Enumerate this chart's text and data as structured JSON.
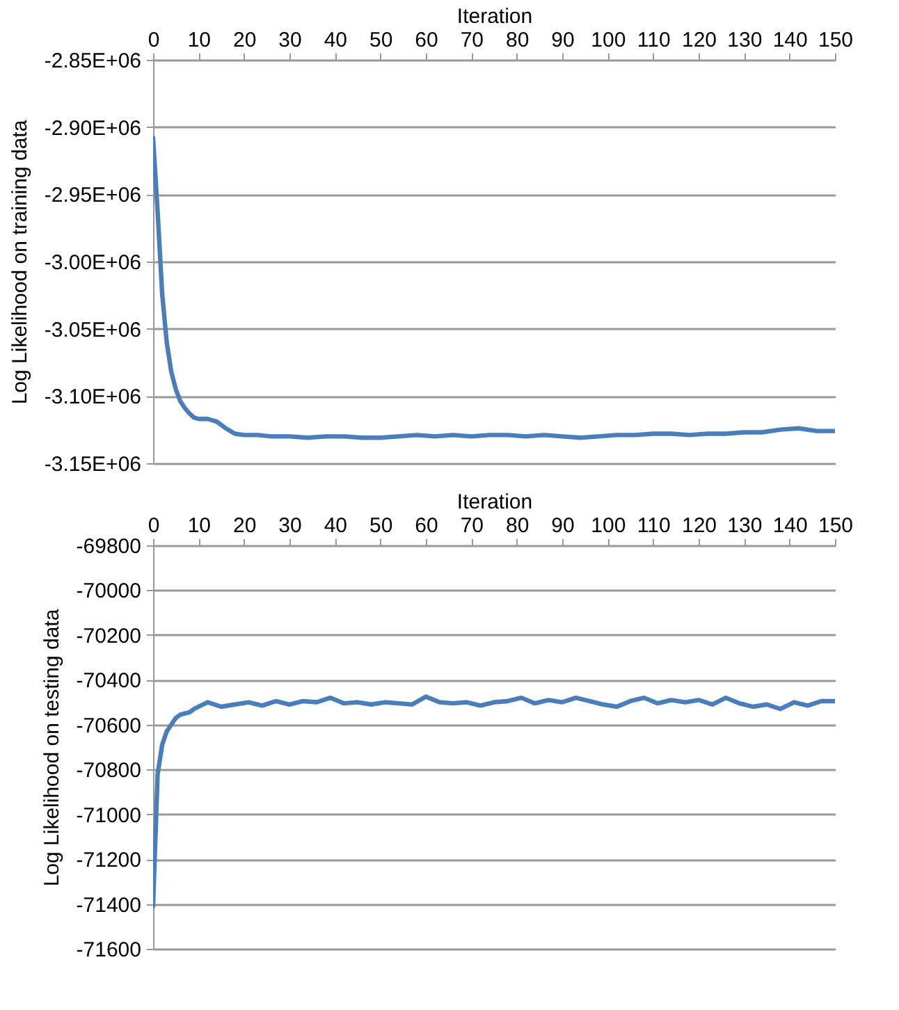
{
  "chart_data": [
    {
      "type": "line",
      "xlabel": "Iteration",
      "ylabel": "Log Likelihood on training data",
      "xlim": [
        0,
        150
      ],
      "xticks": [
        0,
        10,
        20,
        30,
        40,
        50,
        60,
        70,
        80,
        90,
        100,
        110,
        120,
        130,
        140,
        150
      ],
      "ylim": [
        -3150000,
        -2850000
      ],
      "yticks": [
        {
          "value": -3150000,
          "label": "-3.15E+06"
        },
        {
          "value": -3100000,
          "label": "-3.10E+06"
        },
        {
          "value": -3050000,
          "label": "-3.05E+06"
        },
        {
          "value": -3000000,
          "label": "-3.00E+06"
        },
        {
          "value": -2950000,
          "label": "-2.95E+06"
        },
        {
          "value": -2900000,
          "label": "-2.90E+06"
        },
        {
          "value": -2850000,
          "label": "-2.85E+06"
        }
      ],
      "grid": "y",
      "legend": false,
      "marker": "none",
      "line_style": "solid",
      "x": [
        0,
        1,
        2,
        3,
        4,
        5,
        6,
        7,
        8,
        9,
        10,
        12,
        14,
        16,
        18,
        20,
        23,
        26,
        30,
        34,
        38,
        42,
        46,
        50,
        54,
        58,
        62,
        66,
        70,
        74,
        78,
        82,
        86,
        90,
        94,
        98,
        102,
        106,
        110,
        114,
        118,
        122,
        126,
        130,
        134,
        138,
        142,
        146,
        150
      ],
      "series": [
        {
          "color": "#4a7ebb",
          "values": [
            -2908000,
            -2963000,
            -3024000,
            -3060000,
            -3082000,
            -3095000,
            -3104000,
            -3109000,
            -3113000,
            -3116000,
            -3117000,
            -3117000,
            -3119000,
            -3124000,
            -3128000,
            -3129000,
            -3129000,
            -3130000,
            -3130000,
            -3131000,
            -3130000,
            -3130000,
            -3131000,
            -3131000,
            -3130000,
            -3129000,
            -3130000,
            -3129000,
            -3130000,
            -3129000,
            -3129000,
            -3130000,
            -3129000,
            -3130000,
            -3131000,
            -3130000,
            -3129000,
            -3129000,
            -3128000,
            -3128000,
            -3129000,
            -3128000,
            -3128000,
            -3127000,
            -3127000,
            -3125000,
            -3124000,
            -3126000,
            -3126000
          ]
        }
      ]
    },
    {
      "type": "line",
      "xlabel": "Iteration",
      "ylabel": "Log Likelihood on testing data",
      "xlim": [
        0,
        150
      ],
      "xticks": [
        0,
        10,
        20,
        30,
        40,
        50,
        60,
        70,
        80,
        90,
        100,
        110,
        120,
        130,
        140,
        150
      ],
      "ylim": [
        -71600,
        -69800
      ],
      "yticks": [
        -71600,
        -71400,
        -71200,
        -71000,
        -70800,
        -70600,
        -70400,
        -70200,
        -70000,
        -69800
      ],
      "grid": "y",
      "legend": false,
      "marker": "none",
      "line_style": "solid",
      "x": [
        0,
        1,
        2,
        3,
        4,
        5,
        6,
        7,
        8,
        9,
        12,
        15,
        18,
        21,
        24,
        27,
        30,
        33,
        36,
        39,
        42,
        45,
        48,
        51,
        54,
        57,
        60,
        63,
        66,
        69,
        72,
        75,
        78,
        81,
        84,
        87,
        90,
        93,
        96,
        99,
        102,
        105,
        108,
        111,
        114,
        117,
        120,
        123,
        126,
        129,
        132,
        135,
        138,
        141,
        144,
        147,
        150
      ],
      "series": [
        {
          "color": "#4a7ebb",
          "values": [
            -71410,
            -70820,
            -70690,
            -70630,
            -70600,
            -70570,
            -70555,
            -70550,
            -70545,
            -70530,
            -70500,
            -70520,
            -70510,
            -70500,
            -70515,
            -70495,
            -70510,
            -70495,
            -70500,
            -70480,
            -70505,
            -70500,
            -70510,
            -70500,
            -70505,
            -70510,
            -70475,
            -70500,
            -70505,
            -70500,
            -70515,
            -70500,
            -70495,
            -70480,
            -70505,
            -70490,
            -70500,
            -70480,
            -70495,
            -70510,
            -70520,
            -70495,
            -70480,
            -70505,
            -70490,
            -70500,
            -70490,
            -70510,
            -70480,
            -70505,
            -70520,
            -70510,
            -70530,
            -70500,
            -70515,
            -70495,
            -70495
          ]
        }
      ]
    }
  ]
}
